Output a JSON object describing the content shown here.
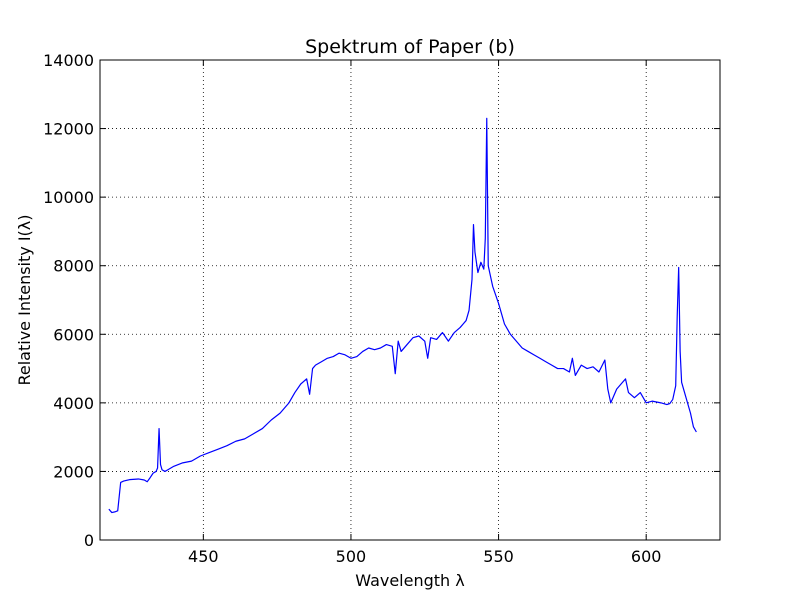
{
  "chart_data": {
    "type": "line",
    "title": "Spektrum of Paper (b)",
    "xlabel": "Wavelength λ",
    "ylabel": "Relative Intensity I(λ)",
    "xlim": [
      415,
      625
    ],
    "ylim": [
      0,
      14000
    ],
    "grid": true,
    "x_ticks": [
      450,
      500,
      550,
      600
    ],
    "y_ticks": [
      0,
      2000,
      4000,
      6000,
      8000,
      10000,
      12000,
      14000
    ],
    "series": [
      {
        "color": "#0000ff",
        "x": [
          418,
          419,
          420,
          421,
          422,
          423,
          425,
          428,
          430,
          431,
          432,
          433,
          434,
          434.5,
          435,
          435.5,
          436,
          437,
          438,
          440,
          443,
          446,
          449,
          452,
          455,
          458,
          461,
          464,
          467,
          470,
          473,
          476,
          479,
          481,
          483,
          485,
          486,
          487,
          488,
          490,
          492,
          494,
          496,
          498,
          500,
          502,
          504,
          506,
          508,
          510,
          512,
          514,
          515,
          516,
          517,
          519,
          521,
          523,
          525,
          526,
          527,
          529,
          531,
          533,
          535,
          537,
          538,
          539,
          540,
          541,
          541.5,
          542,
          543,
          544,
          545,
          545.5,
          546,
          546.5,
          547,
          548,
          550,
          552,
          554,
          556,
          558,
          560,
          562,
          564,
          566,
          568,
          570,
          572,
          574,
          575,
          576,
          578,
          580,
          582,
          584,
          586,
          587,
          588,
          590,
          592,
          593,
          594,
          596,
          598,
          600,
          602,
          605,
          607,
          608,
          609,
          610,
          610.5,
          611,
          611.5,
          612,
          613,
          614,
          615,
          616,
          617
        ],
        "y": [
          900,
          800,
          820,
          850,
          1680,
          1720,
          1760,
          1780,
          1750,
          1700,
          1820,
          1950,
          2000,
          2100,
          3250,
          2200,
          2050,
          2000,
          2050,
          2150,
          2250,
          2300,
          2450,
          2550,
          2650,
          2750,
          2880,
          2950,
          3100,
          3250,
          3500,
          3700,
          4000,
          4300,
          4550,
          4700,
          4250,
          5000,
          5100,
          5200,
          5300,
          5350,
          5450,
          5400,
          5300,
          5350,
          5500,
          5600,
          5550,
          5600,
          5700,
          5650,
          4850,
          5800,
          5500,
          5700,
          5900,
          5950,
          5800,
          5300,
          5900,
          5850,
          6050,
          5800,
          6050,
          6200,
          6300,
          6400,
          6700,
          7600,
          9200,
          8400,
          7800,
          8100,
          7900,
          8800,
          12300,
          8000,
          7800,
          7400,
          6900,
          6300,
          6000,
          5800,
          5600,
          5500,
          5400,
          5300,
          5200,
          5100,
          5000,
          5000,
          4900,
          5300,
          4800,
          5100,
          5000,
          5050,
          4900,
          5250,
          4400,
          4000,
          4400,
          4600,
          4700,
          4300,
          4150,
          4300,
          4000,
          4050,
          4000,
          3950,
          3980,
          4100,
          4500,
          6500,
          7950,
          5500,
          4600,
          4300,
          4000,
          3700,
          3300,
          3150
        ]
      }
    ]
  }
}
